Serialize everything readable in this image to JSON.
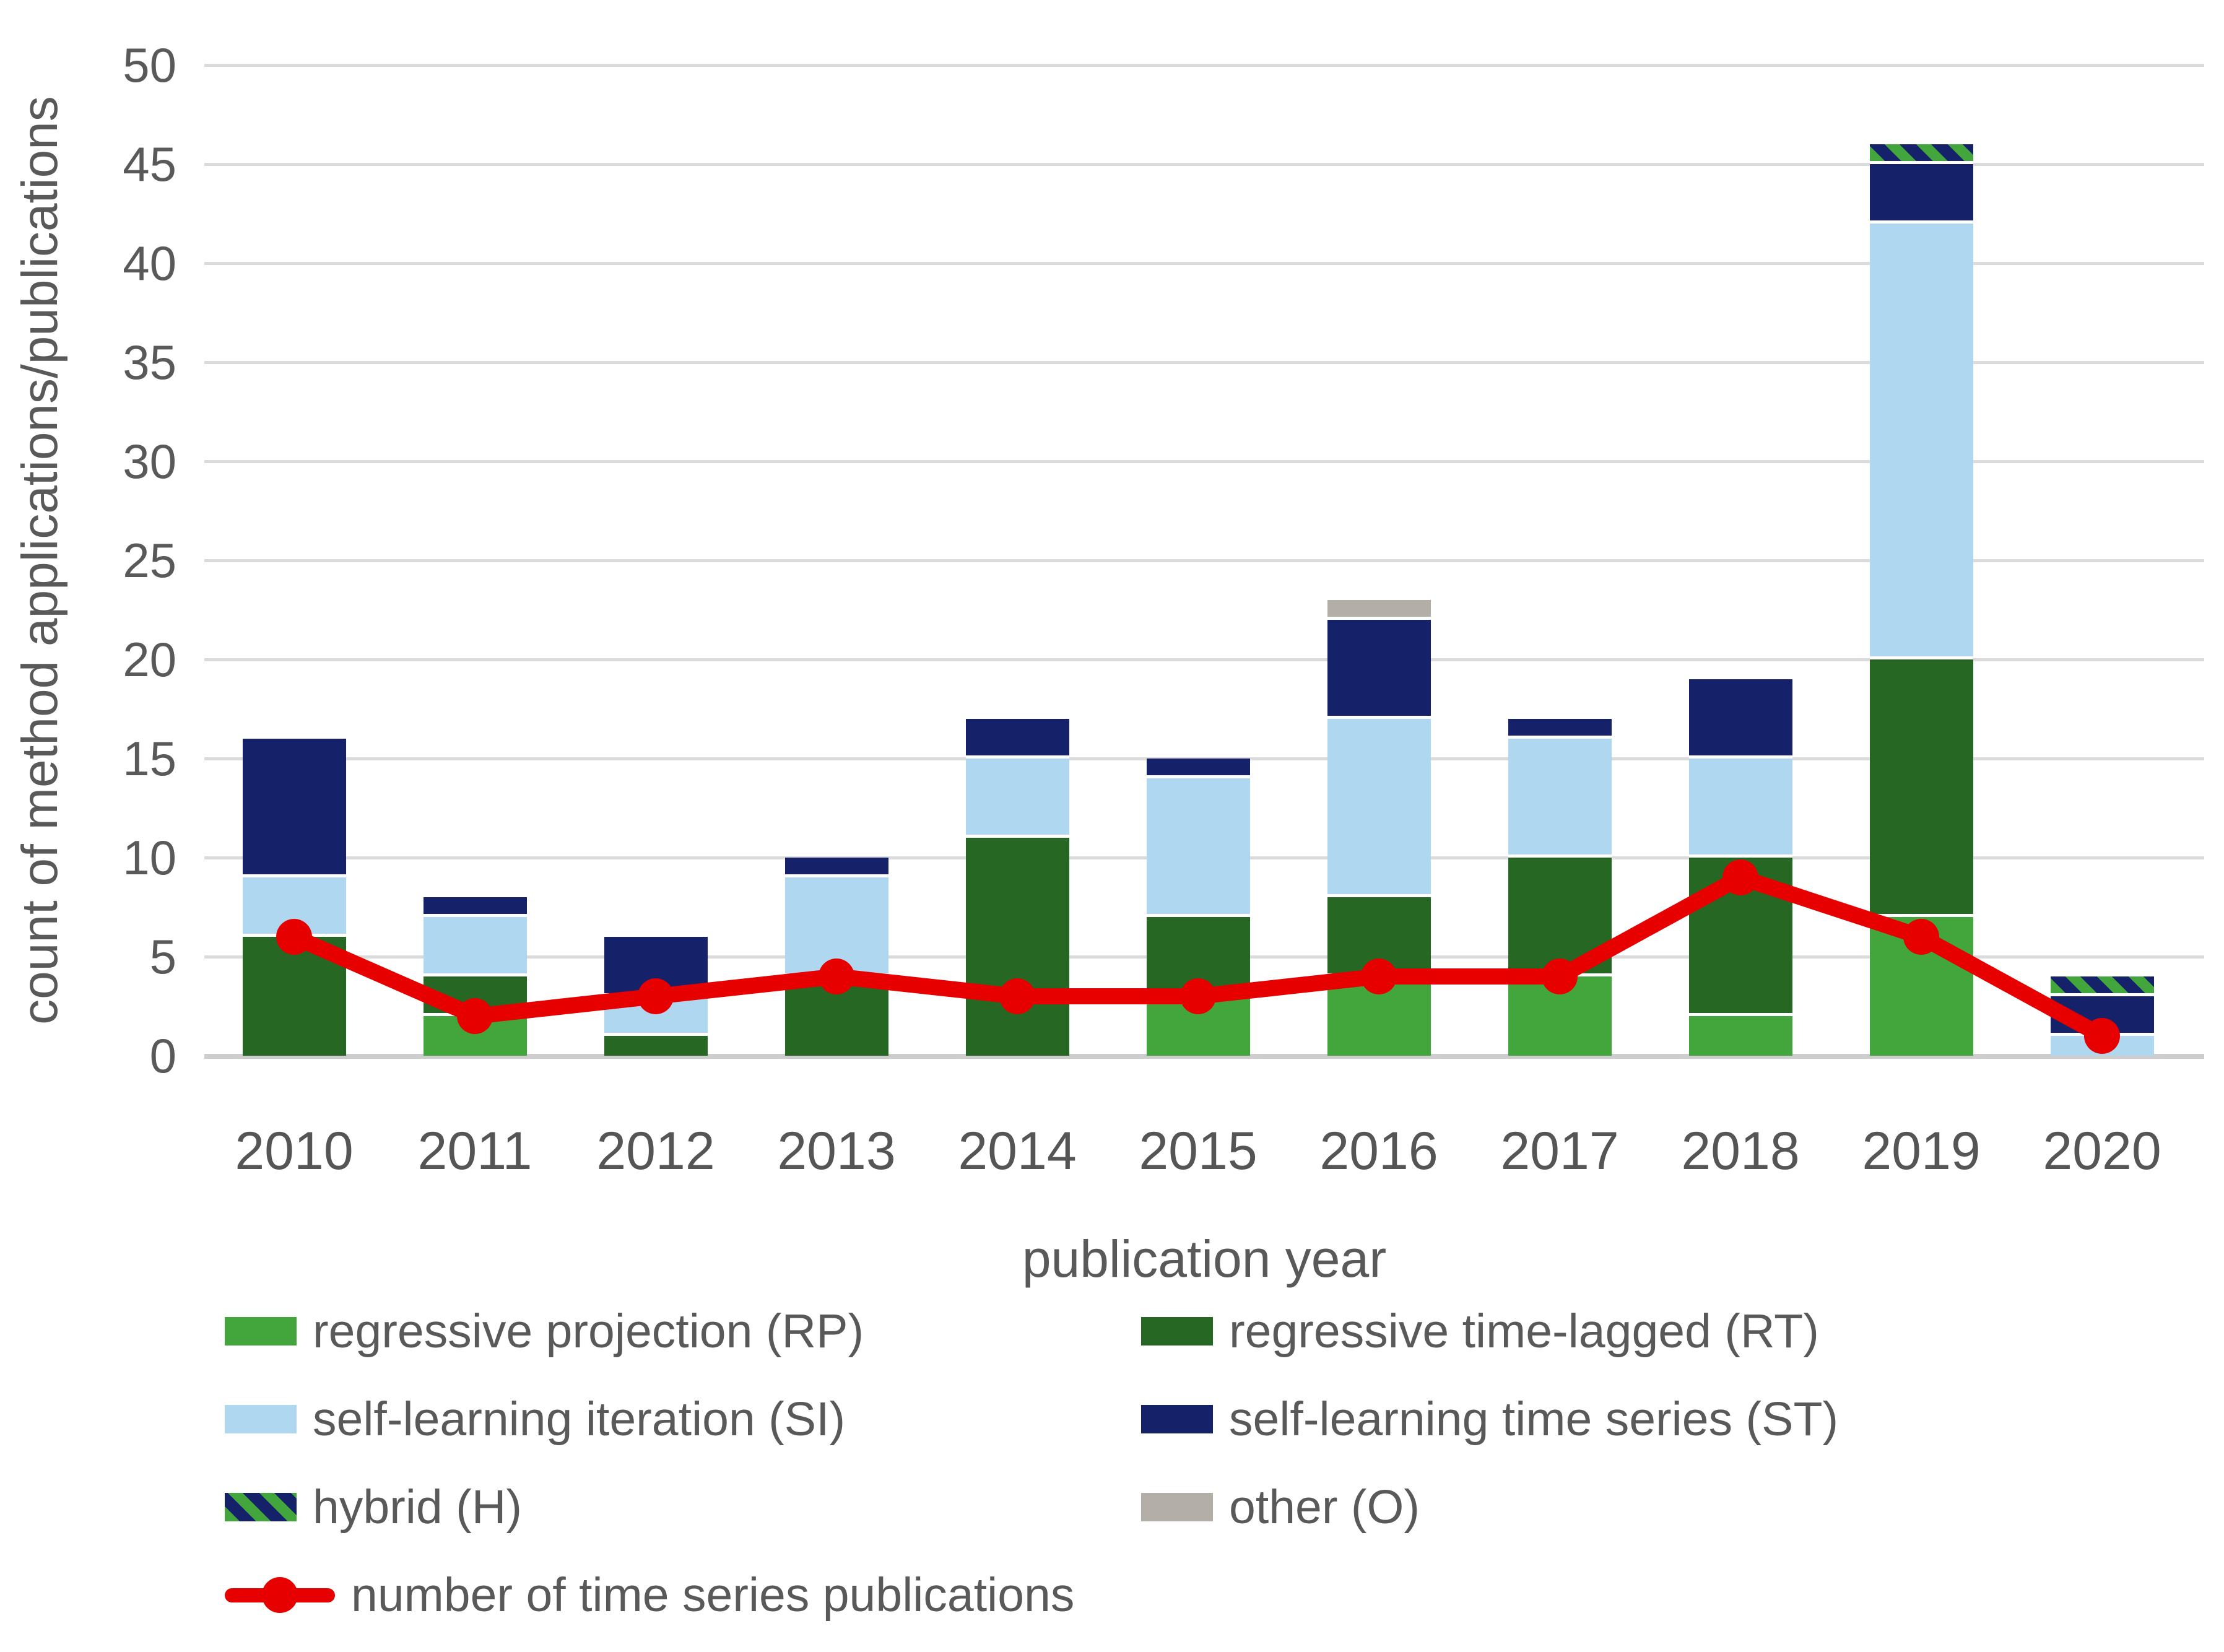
{
  "figure": {
    "ylabel": "count of method applications/publications",
    "xlabel": "publication year"
  },
  "chart_data": {
    "type": "bar",
    "subtype": "stacked-bars-with-line-overlay",
    "categories": [
      "2010",
      "2011",
      "2012",
      "2013",
      "2014",
      "2015",
      "2016",
      "2017",
      "2018",
      "2019",
      "2020"
    ],
    "series": [
      {
        "key": "RP",
        "name": "regressive projection (RP)",
        "color": "#42A63C",
        "values": [
          0,
          2,
          0,
          0,
          0,
          3,
          4,
          4,
          2,
          7,
          0
        ]
      },
      {
        "key": "RT",
        "name": "regressive time-lagged (RT)",
        "color": "#266823",
        "values": [
          6,
          2,
          1,
          4,
          11,
          4,
          4,
          6,
          8,
          13,
          0
        ]
      },
      {
        "key": "SI",
        "name": "self-learning iteration (SI)",
        "color": "#AFD7F0",
        "values": [
          3,
          3,
          2,
          5,
          4,
          7,
          9,
          6,
          5,
          22,
          1
        ]
      },
      {
        "key": "ST",
        "name": "self-learning time series (ST)",
        "color": "#15226A",
        "values": [
          7,
          1,
          3,
          1,
          2,
          1,
          5,
          1,
          4,
          3,
          2
        ]
      },
      {
        "key": "H",
        "name": "hybrid (H)",
        "pattern": "diagonal-stripes",
        "pattern_colors": [
          "#42A63C",
          "#15226A"
        ],
        "color": "#42A63C",
        "values": [
          0,
          0,
          0,
          0,
          0,
          0,
          0,
          0,
          0,
          1,
          1
        ]
      },
      {
        "key": "O",
        "name": "other (O)",
        "color": "#B3AEA8",
        "values": [
          0,
          0,
          0,
          0,
          0,
          0,
          1,
          0,
          0,
          0,
          0
        ]
      }
    ],
    "bar_totals": [
      16,
      8,
      6,
      10,
      17,
      15,
      23,
      17,
      19,
      46,
      4
    ],
    "line_series": {
      "key": "TS",
      "name": "number of time series publications",
      "color": "#E60000",
      "values": [
        6,
        2,
        3,
        4,
        3,
        3,
        4,
        4,
        9,
        6,
        1
      ]
    },
    "title": "",
    "xlabel": "publication year",
    "ylabel": "count of method applications/publications",
    "ylim": [
      0,
      50
    ],
    "ytick_step": 5,
    "yticks": [
      0,
      5,
      10,
      15,
      20,
      25,
      30,
      35,
      40,
      45,
      50
    ],
    "grid": "horizontal",
    "legend_position": "bottom",
    "legend_rows": [
      [
        "RP",
        "RT"
      ],
      [
        "SI",
        "ST"
      ],
      [
        "H",
        "O"
      ],
      [
        "TS"
      ]
    ],
    "colors": {
      "grid": "#DBDBDB",
      "axis_line": "#CDCDCD",
      "tick_text": "#595959",
      "separator": "#FFFFFF"
    }
  }
}
